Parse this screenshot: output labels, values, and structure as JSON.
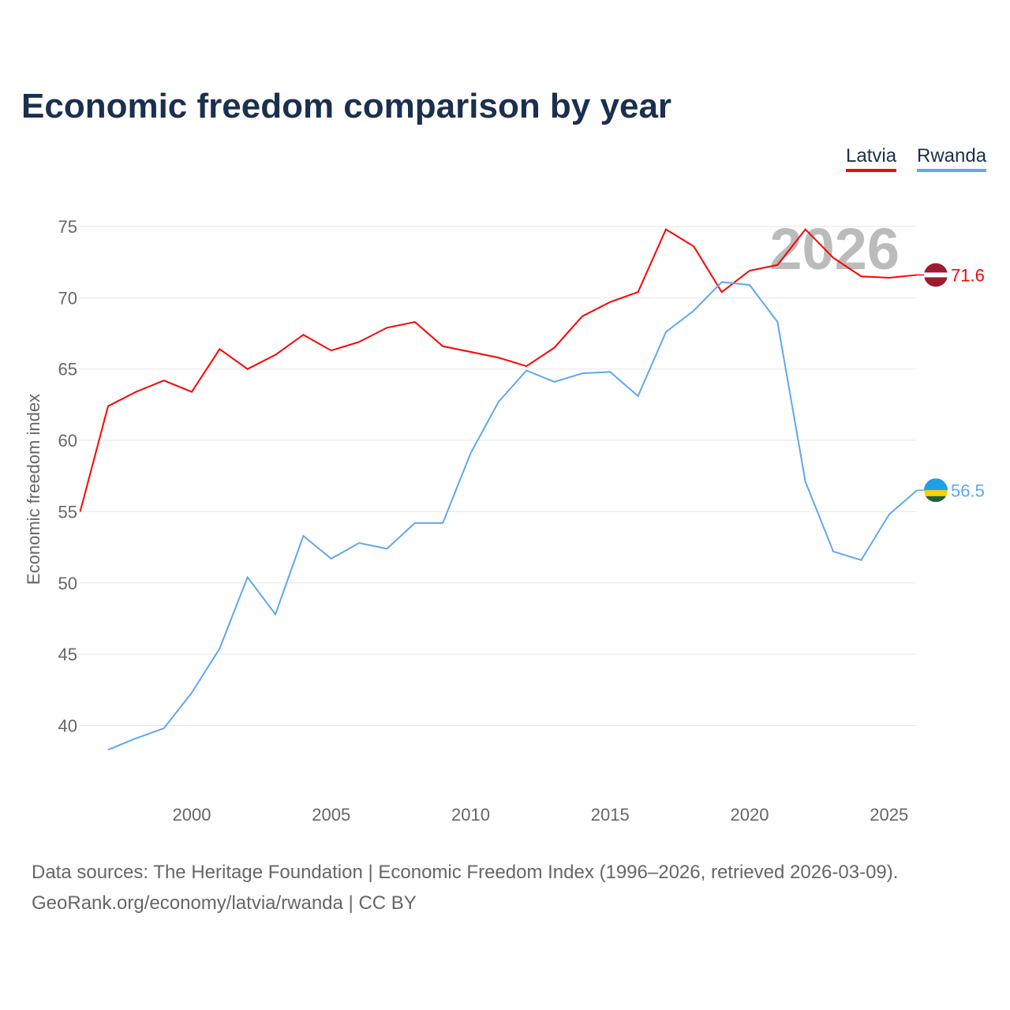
{
  "chart_data": {
    "type": "line",
    "title": "Economic freedom comparison by year",
    "ylabel": "Economic freedom index",
    "xlabel": "",
    "xlim": [
      1996,
      2026
    ],
    "ylim": [
      35,
      77
    ],
    "yticks": [
      40,
      45,
      50,
      55,
      60,
      65,
      70,
      75
    ],
    "xticks": [
      2000,
      2005,
      2010,
      2015,
      2020,
      2025
    ],
    "watermark_year": "2026",
    "legend_position": "top-right",
    "grid": true,
    "series": [
      {
        "name": "Latvia",
        "color": "#ff0000",
        "end_label": "71.6",
        "flag": [
          "#9e1b32",
          "#ffffff",
          "#9e1b32"
        ],
        "x": [
          1996,
          1997,
          1998,
          1999,
          2000,
          2001,
          2002,
          2003,
          2004,
          2005,
          2006,
          2007,
          2008,
          2009,
          2010,
          2011,
          2012,
          2013,
          2014,
          2015,
          2016,
          2017,
          2018,
          2019,
          2020,
          2021,
          2022,
          2023,
          2024,
          2025,
          2026
        ],
        "y": [
          55.0,
          62.4,
          63.4,
          64.2,
          63.4,
          66.4,
          65.0,
          66.0,
          67.4,
          66.3,
          66.9,
          67.9,
          68.3,
          66.6,
          66.2,
          65.8,
          65.2,
          66.5,
          68.7,
          69.7,
          70.4,
          74.8,
          73.6,
          70.4,
          71.9,
          72.3,
          74.8,
          72.8,
          71.5,
          71.4,
          71.6
        ]
      },
      {
        "name": "Rwanda",
        "color": "#5ea8ee",
        "end_label": "56.5",
        "flag": [
          "#20a0e4",
          "#fad201",
          "#20603d"
        ],
        "x": [
          1997,
          1998,
          1999,
          2000,
          2001,
          2002,
          2003,
          2004,
          2005,
          2006,
          2007,
          2008,
          2009,
          2010,
          2011,
          2012,
          2013,
          2014,
          2015,
          2016,
          2017,
          2018,
          2019,
          2020,
          2021,
          2022,
          2023,
          2024,
          2025,
          2026
        ],
        "y": [
          38.3,
          39.1,
          39.8,
          42.3,
          45.4,
          50.4,
          47.8,
          53.3,
          51.7,
          52.8,
          52.4,
          54.2,
          54.2,
          59.1,
          62.7,
          64.9,
          64.1,
          64.7,
          64.8,
          63.1,
          67.6,
          69.1,
          71.1,
          70.9,
          68.3,
          57.1,
          52.2,
          51.6,
          54.8,
          56.5
        ]
      }
    ]
  },
  "source": {
    "line1": "Data sources: The Heritage Foundation | Economic Freedom Index (1996–2026, retrieved 2026-03-09).",
    "line2": "GeoRank.org/economy/latvia/rwanda | CC BY"
  }
}
